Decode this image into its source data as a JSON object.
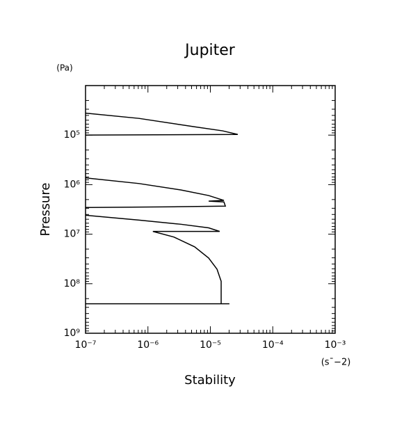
{
  "chart_data": {
    "type": "line",
    "title": "Jupiter",
    "x_label": "Stability",
    "x_unit": "(s¯−2)",
    "y_label": "Pressure",
    "y_unit": "(Pa)",
    "xscale": "log",
    "yscale": "log",
    "xlim": [
      1e-07,
      0.001
    ],
    "ylim": [
      1000000000.0,
      10000.0
    ],
    "xticks": [
      {
        "value": 1e-07,
        "label": "10⁻⁷"
      },
      {
        "value": 1e-06,
        "label": "10⁻⁶"
      },
      {
        "value": 1e-05,
        "label": "10⁻⁵"
      },
      {
        "value": 0.0001,
        "label": "10⁻⁴"
      },
      {
        "value": 0.001,
        "label": "10⁻³"
      }
    ],
    "yticks": [
      {
        "value": 100000.0,
        "label": "10⁵"
      },
      {
        "value": 1000000.0,
        "label": "10⁶"
      },
      {
        "value": 10000000.0,
        "label": "10⁷"
      },
      {
        "value": 100000000.0,
        "label": "10⁸"
      },
      {
        "value": 1000000000.0,
        "label": "10⁹"
      }
    ],
    "grid": false,
    "series": [
      {
        "color": "#000000",
        "x": [
          1e-07,
          7.2e-07,
          5.6e-06,
          1.57e-05,
          2.75e-05,
          1e-07,
          null,
          1e-07,
          7.2e-07,
          3.36e-06,
          9.4e-06,
          1.65e-05,
          9.4e-06,
          1.65e-05,
          1.74e-05,
          2.6e-06,
          1e-07,
          null,
          1e-07,
          7.2e-07,
          3.36e-06,
          9.4e-06,
          1.41e-05,
          4.35e-06,
          1.2e-06,
          2.6e-06,
          5.6e-06,
          9.4e-06,
          1.28e-05,
          1.45e-05,
          1.49e-05,
          1.49e-05,
          2.02e-05,
          null,
          1e-07,
          1.49e-05
        ],
        "values": [
          36000.0,
          46000.0,
          68000.0,
          82000.0,
          97000.0,
          100000.0,
          null,
          730000.0,
          950000.0,
          1280000.0,
          1660000.0,
          2080000.0,
          2150000.0,
          2230000.0,
          2710000.0,
          2800000.0,
          2890000.0,
          null,
          4140000.0,
          5200000.0,
          6300000.0,
          7450000.0,
          8800000.0,
          8800000.0,
          8800000.0,
          11400000.0,
          18000000.0,
          30300000.0,
          51000000.0,
          81000000.0,
          89000000.0,
          254000000.0,
          254000000.0,
          null,
          254000000.0,
          254000000.0
        ]
      }
    ]
  }
}
